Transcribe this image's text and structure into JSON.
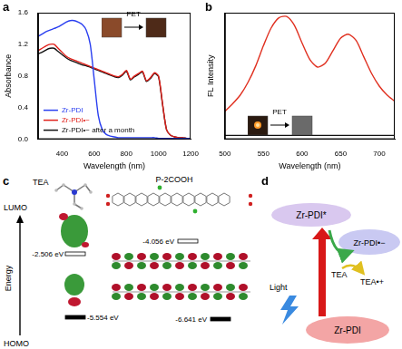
{
  "panel_labels": [
    "a",
    "b",
    "c",
    "d"
  ],
  "chart_data": [
    {
      "type": "line",
      "x_label": "Wavelength (nm)",
      "y_label": "Absorbance",
      "x": [
        250,
        275,
        300,
        325,
        350,
        375,
        400,
        425,
        450,
        475,
        500,
        525,
        550,
        575,
        600,
        625,
        650,
        675,
        700,
        725,
        750,
        775,
        800,
        825,
        850,
        875,
        900,
        925,
        950,
        975,
        1000,
        1025,
        1050,
        1075,
        1100,
        1125,
        1150,
        1175,
        1200
      ],
      "series": [
        {
          "name": "Zr-PDI",
          "color": "#2a3ff0",
          "values": [
            1.3,
            1.33,
            1.36,
            1.38,
            1.4,
            1.42,
            1.45,
            1.48,
            1.5,
            1.5,
            1.48,
            1.45,
            1.38,
            1.2,
            0.75,
            0.3,
            0.12,
            0.06,
            0.04,
            0.03,
            0.02,
            0.02,
            0.02,
            0.02,
            0.02,
            0.02,
            0.02,
            0.02,
            0.02,
            0.02,
            0.01,
            0.01,
            0.01,
            0.01,
            0.01,
            0.01,
            0.01,
            0.01,
            0.01
          ]
        },
        {
          "name": "Zr-PDI•−",
          "color": "#e0201a",
          "values": [
            1.12,
            1.15,
            1.18,
            1.2,
            1.2,
            1.15,
            1.1,
            1.05,
            1.02,
            1.0,
            0.98,
            0.96,
            0.94,
            0.92,
            0.9,
            0.88,
            0.86,
            0.84,
            0.82,
            0.8,
            0.79,
            0.82,
            0.87,
            0.76,
            0.8,
            0.83,
            0.86,
            0.74,
            0.78,
            0.84,
            0.8,
            0.45,
            0.12,
            0.05,
            0.03,
            0.02,
            0.02,
            0.01,
            0.01
          ]
        },
        {
          "name": "Zr-PDI•− after a month",
          "color": "#111111",
          "values": [
            1.08,
            1.1,
            1.13,
            1.15,
            1.15,
            1.11,
            1.07,
            1.03,
            1.0,
            0.98,
            0.96,
            0.94,
            0.93,
            0.91,
            0.89,
            0.87,
            0.85,
            0.83,
            0.81,
            0.79,
            0.78,
            0.81,
            0.86,
            0.75,
            0.79,
            0.82,
            0.85,
            0.73,
            0.77,
            0.83,
            0.79,
            0.44,
            0.12,
            0.05,
            0.03,
            0.02,
            0.02,
            0.01,
            0.01
          ]
        }
      ],
      "xlim": [
        250,
        1200
      ],
      "xticks": [
        400,
        600,
        800,
        1000,
        1200
      ],
      "ylim": [
        0,
        1.6
      ],
      "yticks": [
        {
          "value": 0,
          "label": "0.0"
        },
        0.4,
        0.8,
        1.2,
        1.6
      ],
      "legend": "lower left",
      "grid": false,
      "annotations": [
        "PET"
      ]
    },
    {
      "type": "line",
      "x_label": "Wavelength (nm)",
      "y_label": "FL Intensity",
      "x": [
        500,
        510,
        520,
        530,
        540,
        550,
        560,
        570,
        580,
        590,
        600,
        610,
        620,
        630,
        640,
        650,
        660,
        670,
        680,
        690,
        700,
        710,
        720
      ],
      "series": [
        {
          "color": "#e03020",
          "values": [
            0.22,
            0.28,
            0.35,
            0.45,
            0.58,
            0.74,
            0.88,
            0.96,
            0.97,
            0.9,
            0.76,
            0.63,
            0.57,
            0.6,
            0.7,
            0.8,
            0.83,
            0.78,
            0.65,
            0.52,
            0.42,
            0.35,
            0.3
          ]
        },
        {
          "color": "#111111",
          "values": [
            0.03,
            0.03,
            0.03,
            0.03,
            0.03,
            0.03,
            0.03,
            0.03,
            0.03,
            0.03,
            0.03,
            0.03,
            0.03,
            0.03,
            0.03,
            0.03,
            0.03,
            0.03,
            0.03,
            0.03,
            0.03,
            0.03,
            0.03
          ]
        }
      ],
      "xlim": [
        500,
        720
      ],
      "xticks": [
        500,
        550,
        600,
        650,
        700
      ],
      "ylim": [
        0,
        1
      ],
      "tick_labels": "x",
      "grid": false,
      "annotations": [
        "PET"
      ]
    }
  ],
  "diagram_c": {
    "molecules": [
      "TEA",
      "P-2COOH"
    ],
    "axis_label": "Energy",
    "top_label": "LUMO",
    "bottom_label": "HOMO",
    "levels": [
      {
        "molecule": "TEA",
        "orbital": "LUMO",
        "label": "-2.506 eV"
      },
      {
        "molecule": "P-2COOH",
        "orbital": "LUMO",
        "label": "-4.056 eV"
      },
      {
        "molecule": "TEA",
        "orbital": "HOMO",
        "label": "-5.554 eV"
      },
      {
        "molecule": "P-2COOH",
        "orbital": "HOMO",
        "label": "-6.641 eV"
      }
    ]
  },
  "diagram_d": {
    "excited": "Zr-PDI*",
    "reduced": "Zr-PDI•−",
    "ground": "Zr-PDI",
    "donor": "TEA",
    "oxidized_donor": "TEA•+",
    "excitation": "Light"
  }
}
